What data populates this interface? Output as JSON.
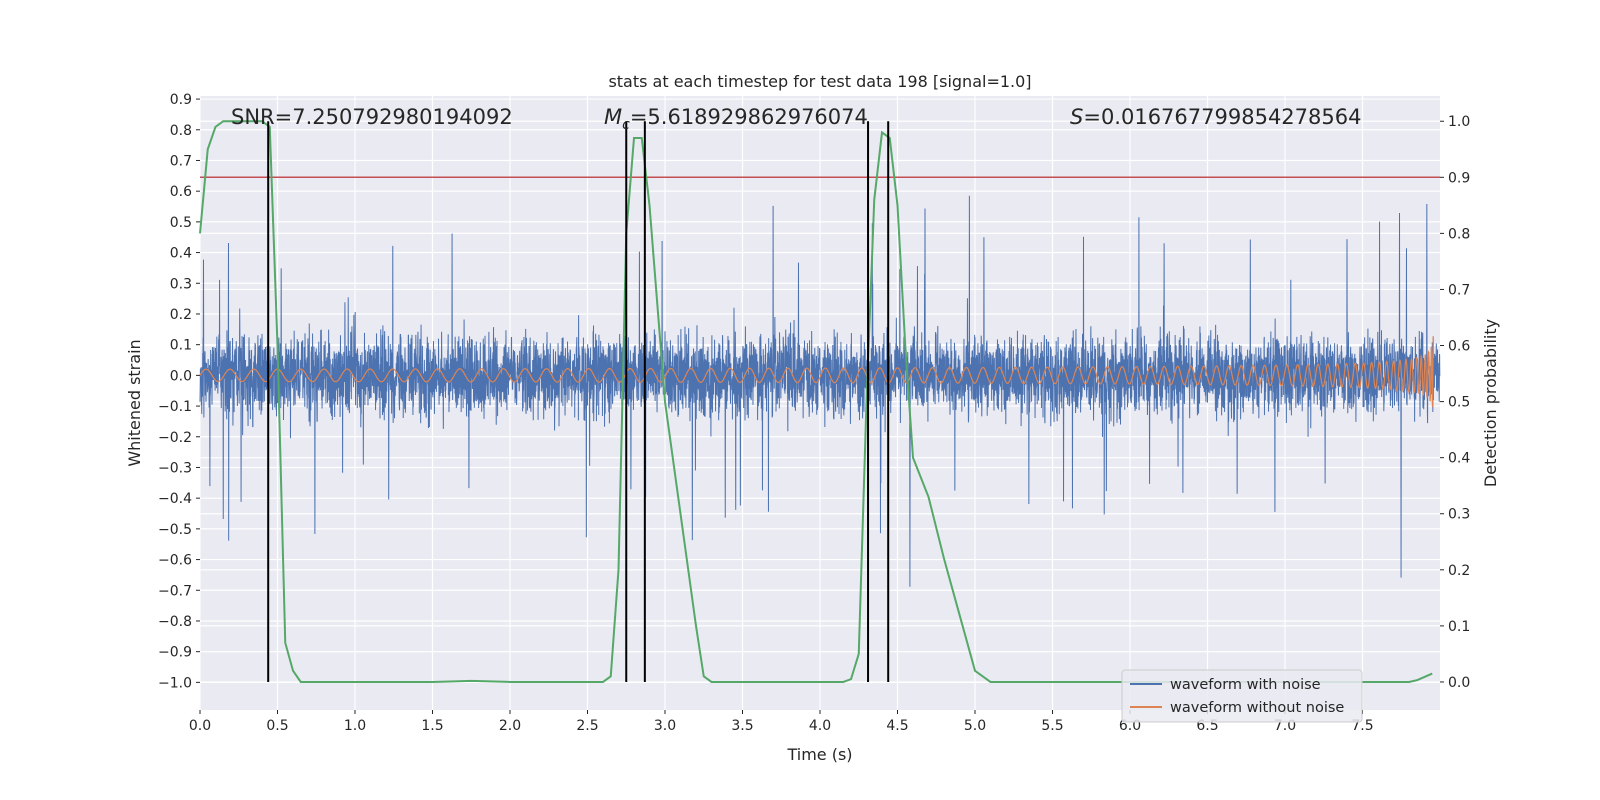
{
  "chart_data": {
    "type": "line",
    "title": "stats at each timestep for test data 198 [signal=1.0]",
    "xlabel": "Time (s)",
    "ylabel": "Whitened strain",
    "y2label": "Detection probability",
    "xlim": [
      0.0,
      8.0
    ],
    "ylim": [
      -1.09,
      0.91
    ],
    "y2lim": [
      -0.05,
      1.045
    ],
    "xticks": [
      "0.0",
      "0.5",
      "1.0",
      "1.5",
      "2.0",
      "2.5",
      "3.0",
      "3.5",
      "4.0",
      "4.5",
      "5.0",
      "5.5",
      "6.0",
      "6.5",
      "7.0",
      "7.5"
    ],
    "yticks": [
      "0.9",
      "0.8",
      "0.7",
      "0.6",
      "0.5",
      "0.4",
      "0.3",
      "0.2",
      "0.1",
      "0.0",
      "−0.1",
      "−0.2",
      "−0.3",
      "−0.4",
      "−0.5",
      "−0.6",
      "−0.7",
      "−0.8",
      "−0.9",
      "−1.0"
    ],
    "y2ticks": [
      "1.0",
      "0.9",
      "0.8",
      "0.7",
      "0.6",
      "0.5",
      "0.4",
      "0.3",
      "0.2",
      "0.1",
      "0.0"
    ],
    "annotations": {
      "snr": "SNR=7.250792980194092",
      "mc_symbol": "M",
      "mc_sub": "c",
      "mc_value": "=5.618929862976074",
      "s_symbol": "S",
      "s_value": "=0.016767799854278564"
    },
    "threshold": 0.9,
    "vlines": [
      0.44,
      2.75,
      2.87,
      4.31,
      4.44
    ],
    "series": [
      {
        "name": "waveform with noise",
        "color": "#4c72b0",
        "axis": "left",
        "description": "noisy whitened strain, roughly within -0.6 to 0.8"
      },
      {
        "name": "waveform without noise",
        "color": "#dd8452",
        "axis": "left",
        "chirp_amplitude_start": 0.02,
        "chirp_amplitude_end": 0.19
      },
      {
        "name": "detection probability",
        "color": "#55a868",
        "axis": "right",
        "x": [
          0.0,
          0.05,
          0.1,
          0.15,
          0.2,
          0.3,
          0.4,
          0.45,
          0.5,
          0.55,
          0.6,
          0.65,
          0.7,
          1.0,
          1.5,
          1.75,
          2.0,
          2.5,
          2.6,
          2.65,
          2.7,
          2.75,
          2.8,
          2.85,
          2.9,
          3.0,
          3.1,
          3.2,
          3.25,
          3.3,
          3.5,
          4.0,
          4.15,
          4.2,
          4.25,
          4.3,
          4.35,
          4.4,
          4.45,
          4.5,
          4.55,
          4.6,
          4.7,
          4.8,
          4.9,
          5.0,
          5.1,
          5.5,
          6.0,
          7.0,
          7.8,
          7.85,
          7.95
        ],
        "values": [
          0.8,
          0.95,
          0.99,
          1.0,
          1.0,
          1.0,
          1.0,
          0.99,
          0.6,
          0.07,
          0.02,
          0.0,
          0.0,
          0.0,
          0.0,
          0.002,
          0.0,
          0.0,
          0.0,
          0.01,
          0.2,
          0.8,
          0.97,
          0.97,
          0.85,
          0.5,
          0.3,
          0.1,
          0.01,
          0.0,
          0.0,
          0.0,
          0.0,
          0.005,
          0.05,
          0.5,
          0.86,
          0.98,
          0.97,
          0.85,
          0.6,
          0.4,
          0.33,
          0.22,
          0.12,
          0.02,
          0.0,
          0.0,
          0.0,
          0.0,
          0.0,
          0.003,
          0.015
        ]
      },
      {
        "name": "threshold",
        "color": "#c44e52",
        "axis": "right",
        "values": [
          0.9
        ]
      }
    ],
    "legend": {
      "placement": "lower-right",
      "entries": [
        {
          "label": "waveform with noise",
          "color": "#4c72b0"
        },
        {
          "label": "waveform without noise",
          "color": "#dd8452"
        }
      ]
    },
    "grid": true,
    "background": "#eaeaf2"
  }
}
